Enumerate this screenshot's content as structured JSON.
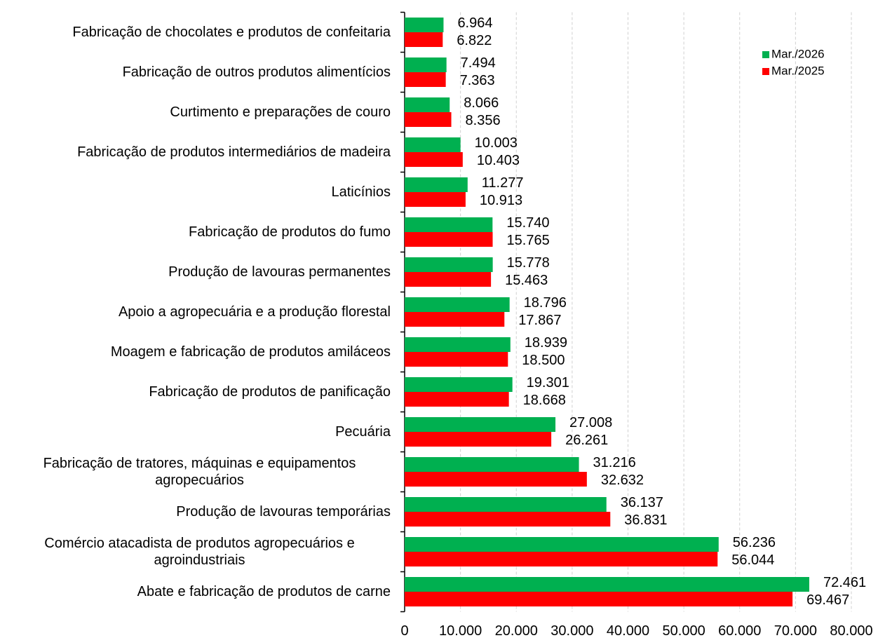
{
  "chart_data": {
    "type": "bar",
    "orientation": "horizontal",
    "categories": [
      "Fabricação de chocolates e produtos de confeitaria",
      "Fabricação de outros produtos alimentícios",
      "Curtimento e preparações de couro",
      "Fabricação de produtos intermediários de madeira",
      "Laticínios",
      "Fabricação de produtos do fumo",
      "Produção de lavouras permanentes",
      "Apoio a agropecuária e a produção florestal",
      "Moagem e fabricação de produtos amiláceos",
      "Fabricação de produtos de panificação",
      "Pecuária",
      "Fabricação de tratores, máquinas e equipamentos agropecuários",
      "Produção de lavouras temporárias",
      "Comércio atacadista de produtos agropecuários e agroindustriais",
      "Abate e fabricação de produtos de carne"
    ],
    "series": [
      {
        "name": "Mar./2026",
        "color": "#00b050",
        "values": [
          6964,
          7494,
          8066,
          10003,
          11277,
          15740,
          15778,
          18796,
          18939,
          19301,
          27008,
          31216,
          36137,
          56236,
          72461
        ],
        "value_labels": [
          "6.964",
          "7.494",
          "8.066",
          "10.003",
          "11.277",
          "15.740",
          "15.778",
          "18.796",
          "18.939",
          "19.301",
          "27.008",
          "31.216",
          "36.137",
          "56.236",
          "72.461"
        ]
      },
      {
        "name": "Mar./2025",
        "color": "#ff0000",
        "values": [
          6822,
          7363,
          8356,
          10403,
          10913,
          15765,
          15463,
          17867,
          18500,
          18668,
          26261,
          32632,
          36831,
          56044,
          69467
        ],
        "value_labels": [
          "6.822",
          "7.363",
          "8.356",
          "10.403",
          "10.913",
          "15.765",
          "15.463",
          "17.867",
          "18.500",
          "18.668",
          "26.261",
          "32.632",
          "36.831",
          "56.044",
          "69.467"
        ]
      }
    ],
    "xlim": [
      0,
      80000
    ],
    "xticks": [
      0,
      {
        "value": 10000,
        "label": "10.000"
      },
      {
        "value": 20000,
        "label": "20.000"
      },
      {
        "value": 30000,
        "label": "30.000"
      },
      {
        "value": 40000,
        "label": "40.000"
      },
      {
        "value": 50000,
        "label": "50.000"
      },
      {
        "value": 60000,
        "label": "60.000"
      },
      {
        "value": 70000,
        "label": "70.000"
      },
      {
        "value": 80000,
        "label": "80.000"
      }
    ],
    "grid": true,
    "legend": "upper right"
  }
}
